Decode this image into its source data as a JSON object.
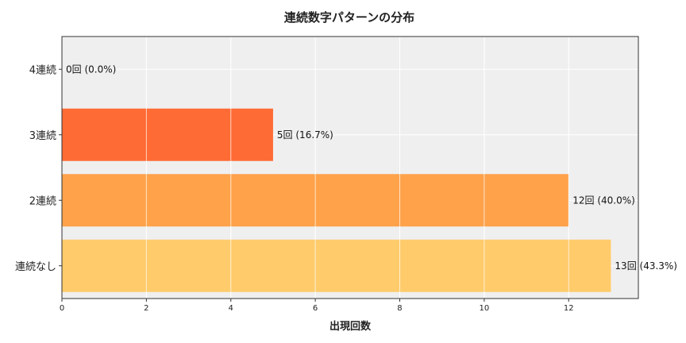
{
  "chart_data": {
    "type": "bar",
    "orientation": "horizontal",
    "title": "連続数字パターンの分布",
    "xlabel": "出現回数",
    "ylabel": "",
    "categories": [
      "4連続",
      "3連続",
      "2連続",
      "連続なし"
    ],
    "values": [
      0,
      5,
      12,
      13
    ],
    "data_labels": [
      "0回 (0.0%)",
      "5回 (16.7%)",
      "12回 (40.0%)",
      "13回 (43.3%)"
    ],
    "colors": [
      "#ff4500",
      "#ff6b35",
      "#ffa24a",
      "#ffcb6b"
    ],
    "xlim": [
      0,
      13.65
    ],
    "xticks": [
      0,
      2,
      4,
      6,
      8,
      10,
      12
    ],
    "grid": true,
    "plot_background": "#efefef"
  }
}
